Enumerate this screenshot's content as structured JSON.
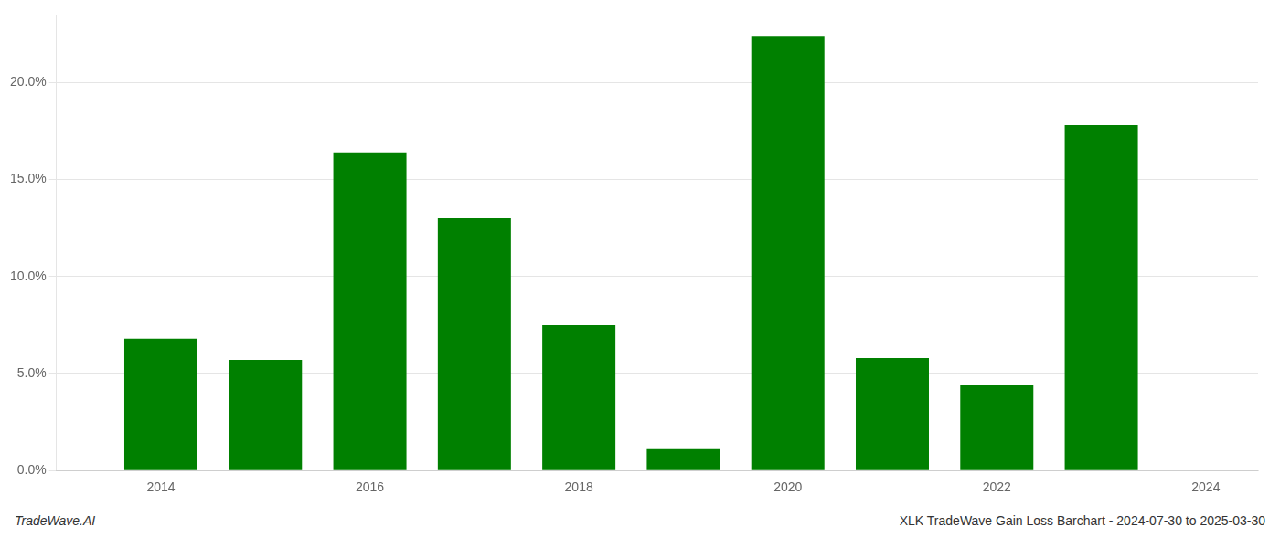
{
  "chart_data": {
    "type": "bar",
    "x": [
      2014,
      2015,
      2016,
      2017,
      2018,
      2019,
      2020,
      2021,
      2022,
      2023
    ],
    "values": [
      0.068,
      0.057,
      0.164,
      0.13,
      0.075,
      0.011,
      0.224,
      0.058,
      0.044,
      0.178
    ],
    "color": "#008000",
    "xlim": [
      2013,
      2024.5
    ],
    "xticks": [
      2014,
      2016,
      2018,
      2020,
      2022,
      2024
    ],
    "ylim": [
      0,
      0.235
    ],
    "yticks": [
      {
        "value": 0.0,
        "label": "0.0%"
      },
      {
        "value": 0.05,
        "label": "5.0%"
      },
      {
        "value": 0.1,
        "label": "10.0%"
      },
      {
        "value": 0.15,
        "label": "15.0%"
      },
      {
        "value": 0.2,
        "label": "20.0%"
      }
    ],
    "grid": "y",
    "annotations": [
      "TradeWave.AI",
      "XLK TradeWave Gain Loss Barchart - 2024-07-30 to 2025-03-30"
    ]
  }
}
